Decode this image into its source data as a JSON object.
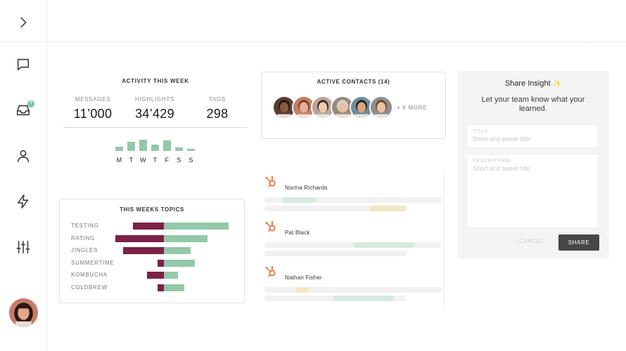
{
  "sidebar": {
    "items": [
      {
        "name": "expand",
        "icon": "chevron-right-icon"
      },
      {
        "name": "messages",
        "icon": "chat-bubble-icon"
      },
      {
        "name": "inbox",
        "icon": "inbox-icon",
        "badge": "7"
      },
      {
        "name": "profile",
        "icon": "user-icon"
      },
      {
        "name": "activity",
        "icon": "lightning-icon"
      },
      {
        "name": "settings",
        "icon": "sliders-icon"
      }
    ],
    "accent_color": "#7cc39a"
  },
  "activity": {
    "title": "ACTIVITY THIS WEEK",
    "stats": [
      {
        "label": "MESSAGES",
        "value": "11’000"
      },
      {
        "label": "HIGHLIGHTS",
        "value": "34’429"
      },
      {
        "label": "TAGS",
        "value": "298"
      }
    ],
    "week_bars": [
      {
        "day": "M",
        "value": 0.35
      },
      {
        "day": "T",
        "value": 0.7
      },
      {
        "day": "W",
        "value": 0.9
      },
      {
        "day": "T",
        "value": 0.5
      },
      {
        "day": "F",
        "value": 0.85
      },
      {
        "day": "S",
        "value": 0.3
      },
      {
        "day": "S",
        "value": 0.15
      }
    ],
    "bar_color": "#93c8a8"
  },
  "topics": {
    "title": "THIS WEEKS TOPICS",
    "negative_color": "#7c2148",
    "positive_color": "#93c8a8",
    "items": [
      {
        "label": "TESTING",
        "negative": 0.44,
        "positive": 0.9
      },
      {
        "label": "RATING",
        "negative": 0.69,
        "positive": 0.61
      },
      {
        "label": "JINGLES",
        "negative": 0.58,
        "positive": 0.37
      },
      {
        "label": "SUMMERTIME",
        "negative": 0.09,
        "positive": 0.43
      },
      {
        "label": "KOMBUCHA",
        "negative": 0.24,
        "positive": 0.2
      },
      {
        "label": "COLDBREW",
        "negative": 0.09,
        "positive": 0.28
      }
    ]
  },
  "contacts": {
    "title": "ACTIVE CONTACTS (14)",
    "more_label": "+ 8 MORE",
    "avatars": [
      {
        "skin": "#8a5a3c",
        "hair": "#1b1b1b",
        "bg": "#5a3d2e"
      },
      {
        "skin": "#e2b196",
        "hair": "#7a3a24",
        "bg": "#c47e63"
      },
      {
        "skin": "#f0c9b0",
        "hair": "#3a2a20",
        "bg": "#b9a69a"
      },
      {
        "skin": "#e8c0a4",
        "hair": "#d8d8d8",
        "bg": "#9a8b7c"
      },
      {
        "skin": "#d9a57d",
        "hair": "#1e1e1e",
        "bg": "#6f8e9a"
      },
      {
        "skin": "#edc3a5",
        "hair": "#6b4a32",
        "bg": "#8f8f8f"
      }
    ]
  },
  "contact_list": {
    "icon": "hubspot-icon",
    "icon_color": "#f07a4a",
    "items": [
      {
        "name": "Norma Richards",
        "tracks": [
          {
            "length": 1.0,
            "segments": [
              {
                "start": 0.1,
                "end": 0.29,
                "color": "#d7eadd"
              }
            ]
          },
          {
            "length": 0.8,
            "segments": [
              {
                "start": 0.59,
                "end": 0.8,
                "color": "#f2e7c2"
              }
            ]
          }
        ]
      },
      {
        "name": "Pat Black",
        "tracks": [
          {
            "length": 1.0,
            "segments": [
              {
                "start": 0.5,
                "end": 0.85,
                "color": "#d7eadd"
              }
            ]
          },
          {
            "length": 0.8,
            "segments": []
          }
        ]
      },
      {
        "name": "Nathan Fisher",
        "tracks": [
          {
            "length": 1.0,
            "segments": [
              {
                "start": 0.18,
                "end": 0.25,
                "color": "#f2e7c2"
              }
            ]
          },
          {
            "length": 0.8,
            "segments": [
              {
                "start": 0.39,
                "end": 0.73,
                "color": "#d7eadd"
              }
            ]
          }
        ]
      }
    ]
  },
  "share": {
    "title": "Share Insight",
    "sparkle": "✨",
    "subtitle": "Let your team know what your learned.",
    "title_field": {
      "label": "TITLE",
      "placeholder": "Short and sweet title"
    },
    "description_field": {
      "label": "DESCRIPTION",
      "placeholder": "Short and sweet title"
    },
    "cancel_label": "CANCEL",
    "share_label": "SHARE"
  }
}
